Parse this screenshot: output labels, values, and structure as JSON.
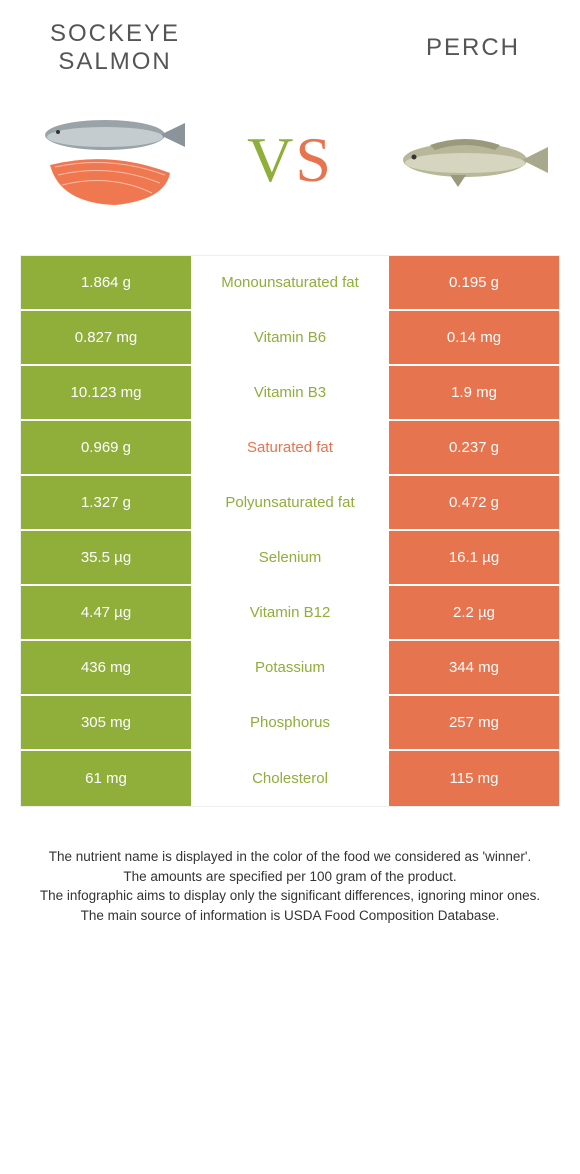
{
  "colors": {
    "left": "#8fae3a",
    "right": "#e6744f",
    "left_text": "#8fae3a",
    "right_text": "#e6744f",
    "vs_left": "#8fae3a",
    "vs_right": "#e6744f",
    "header": "#555555",
    "footer": "#333333"
  },
  "header": {
    "left_title_line1": "Sockeye",
    "left_title_line2": "salmon",
    "right_title": "Perch"
  },
  "vs": {
    "v": "V",
    "s": "S"
  },
  "rows": [
    {
      "left": "1.864 g",
      "label": "Monounsaturated fat",
      "right": "0.195 g",
      "winner": "left"
    },
    {
      "left": "0.827 mg",
      "label": "Vitamin B6",
      "right": "0.14 mg",
      "winner": "left"
    },
    {
      "left": "10.123 mg",
      "label": "Vitamin B3",
      "right": "1.9 mg",
      "winner": "left"
    },
    {
      "left": "0.969 g",
      "label": "Saturated fat",
      "right": "0.237 g",
      "winner": "right"
    },
    {
      "left": "1.327 g",
      "label": "Polyunsaturated fat",
      "right": "0.472 g",
      "winner": "left"
    },
    {
      "left": "35.5 µg",
      "label": "Selenium",
      "right": "16.1 µg",
      "winner": "left"
    },
    {
      "left": "4.47 µg",
      "label": "Vitamin B12",
      "right": "2.2 µg",
      "winner": "left"
    },
    {
      "left": "436 mg",
      "label": "Potassium",
      "right": "344 mg",
      "winner": "left"
    },
    {
      "left": "305 mg",
      "label": "Phosphorus",
      "right": "257 mg",
      "winner": "left"
    },
    {
      "left": "61 mg",
      "label": "Cholesterol",
      "right": "115 mg",
      "winner": "left"
    }
  ],
  "footer": {
    "line1": "The nutrient name is displayed in the color of the food we considered as 'winner'.",
    "line2": "The amounts are specified per 100 gram of the product.",
    "line3": "The infographic aims to display only the significant differences, ignoring minor ones.",
    "line4": "The main source of information is USDA Food Composition Database."
  }
}
